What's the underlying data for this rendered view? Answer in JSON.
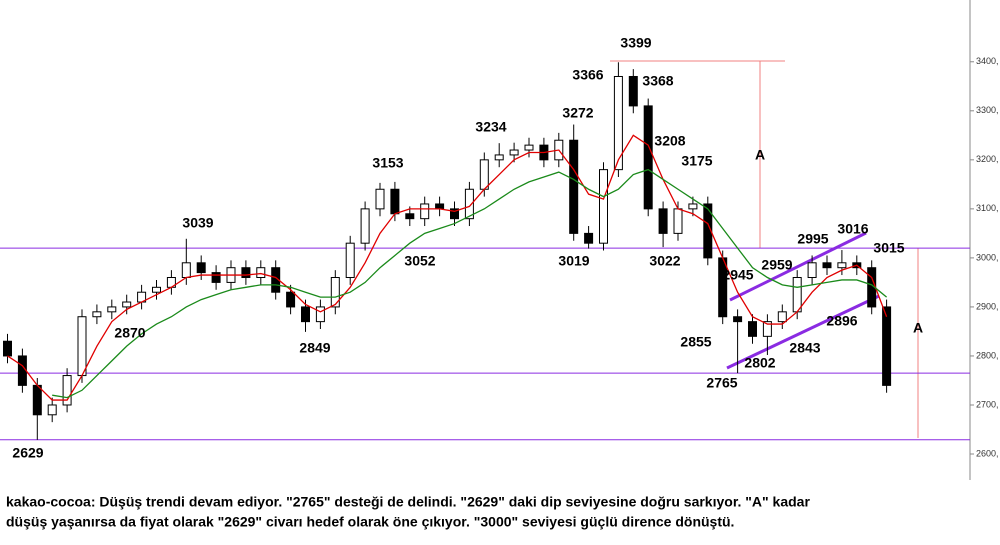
{
  "chart_data": {
    "type": "candlestick",
    "ylim": [
      2547,
      3526
    ],
    "yticks": [
      {
        "value": 2600,
        "label": "2600,"
      },
      {
        "value": 2700,
        "label": "2700,"
      },
      {
        "value": 2800,
        "label": "2800,"
      },
      {
        "value": 2900,
        "label": "2900,"
      },
      {
        "value": 3000,
        "label": "3000,"
      },
      {
        "value": 3100,
        "label": "3100,"
      },
      {
        "value": 3200,
        "label": "3200,"
      },
      {
        "value": 3300,
        "label": "3300,"
      },
      {
        "value": 3400,
        "label": "3400,"
      }
    ],
    "open": [
      2830,
      2800,
      2740,
      2680,
      2700,
      2760,
      2880,
      2890,
      2900,
      2910,
      2930,
      2940,
      2960,
      2990,
      2970,
      2950,
      2980,
      2960,
      2980,
      2930,
      2900,
      2870,
      2900,
      2960,
      3030,
      3100,
      3140,
      3090,
      3080,
      3110,
      3100,
      3080,
      3140,
      3200,
      3210,
      3220,
      3230,
      3200,
      3240,
      3050,
      3030,
      3180,
      3370,
      3310,
      3100,
      3050,
      3100,
      3110,
      3000,
      2880,
      2870,
      2840,
      2870,
      2890,
      2960,
      2990,
      2980,
      2990,
      2980,
      2900
    ],
    "high": [
      2845,
      2815,
      2755,
      2715,
      2775,
      2895,
      2905,
      2915,
      2925,
      2945,
      2955,
      2975,
      3039,
      3005,
      2985,
      2995,
      2995,
      2995,
      2995,
      2945,
      2915,
      2915,
      2975,
      3045,
      3115,
      3153,
      3155,
      3105,
      3125,
      3125,
      3115,
      3155,
      3215,
      3234,
      3235,
      3245,
      3245,
      3255,
      3272,
      3065,
      3195,
      3399,
      3385,
      3325,
      3115,
      3115,
      3125,
      3125,
      3015,
      2895,
      2885,
      2885,
      2905,
      2975,
      3005,
      3005,
      3016,
      3005,
      2995,
      2915
    ],
    "low": [
      2785,
      2725,
      2629,
      2665,
      2685,
      2745,
      2865,
      2875,
      2885,
      2895,
      2915,
      2925,
      2945,
      2955,
      2935,
      2935,
      2945,
      2945,
      2915,
      2885,
      2849,
      2855,
      2885,
      2945,
      3015,
      3085,
      3075,
      3065,
      3065,
      3085,
      3065,
      3065,
      3125,
      3185,
      3195,
      3205,
      3185,
      3185,
      3035,
      3019,
      3015,
      3165,
      3295,
      3085,
      3022,
      3035,
      3085,
      2985,
      2865,
      2765,
      2825,
      2802,
      2855,
      2875,
      2945,
      2965,
      2965,
      2965,
      2885,
      2725
    ],
    "close": [
      2800,
      2740,
      2680,
      2700,
      2760,
      2880,
      2890,
      2900,
      2910,
      2930,
      2940,
      2960,
      2990,
      2970,
      2950,
      2980,
      2960,
      2980,
      2930,
      2900,
      2870,
      2900,
      2960,
      3030,
      3100,
      3140,
      3090,
      3080,
      3110,
      3100,
      3080,
      3140,
      3200,
      3210,
      3220,
      3230,
      3200,
      3240,
      3050,
      3030,
      3180,
      3370,
      3310,
      3100,
      3050,
      3100,
      3110,
      3000,
      2880,
      2870,
      2840,
      2870,
      2890,
      2960,
      2990,
      2980,
      2990,
      2980,
      2900,
      2740
    ],
    "moving_averages": [
      {
        "color": "#e00000",
        "values": [
          2800,
          2780,
          2740,
          2710,
          2710,
          2760,
          2820,
          2870,
          2895,
          2910,
          2925,
          2940,
          2960,
          2965,
          2965,
          2965,
          2965,
          2968,
          2960,
          2935,
          2905,
          2890,
          2905,
          2940,
          2990,
          3050,
          3090,
          3100,
          3100,
          3100,
          3095,
          3105,
          3140,
          3170,
          3200,
          3215,
          3215,
          3220,
          3180,
          3130,
          3120,
          3200,
          3250,
          3230,
          3160,
          3100,
          3090,
          3070,
          3000,
          2930,
          2880,
          2865,
          2865,
          2890,
          2930,
          2960,
          2975,
          2985,
          2960,
          2880
        ]
      },
      {
        "color": "#1a8a1a",
        "values": [
          null,
          null,
          null,
          2720,
          2715,
          2730,
          2760,
          2790,
          2820,
          2845,
          2865,
          2880,
          2900,
          2915,
          2925,
          2935,
          2940,
          2945,
          2945,
          2940,
          2930,
          2920,
          2920,
          2930,
          2950,
          2980,
          3005,
          3030,
          3050,
          3060,
          3070,
          3085,
          3100,
          3120,
          3140,
          3155,
          3165,
          3175,
          3160,
          3140,
          3125,
          3140,
          3170,
          3180,
          3160,
          3140,
          3120,
          3100,
          3060,
          3020,
          2980,
          2960,
          2945,
          2940,
          2945,
          2950,
          2955,
          2955,
          2945,
          2920
        ]
      }
    ],
    "levels": [
      3020,
      2765,
      2629
    ],
    "level_color": "#8a2be2",
    "annotations": [
      "3399",
      "3366",
      "3368",
      "3272",
      "3234",
      "3208",
      "3175",
      "3153",
      "3039",
      "2995",
      "3016",
      "3015",
      "3052",
      "3019",
      "3022",
      "2945",
      "2959",
      "2896",
      "2870",
      "2849",
      "2855",
      "2843",
      "2802",
      "2765",
      "2629"
    ],
    "measure_label": "A",
    "caption": [
      "kakao-cocoa: Düşüş trendi devam ediyor. \"2765\" desteği de delindi. \"2629\" daki dip seviyesine doğru sarkıyor. \"A\" kadar",
      "düşüş yaşanırsa da fiyat olarak \"2629\" civarı hedef olarak öne çıkıyor. \"3000\" seviyesi güçlü dirence dönüştü."
    ]
  }
}
